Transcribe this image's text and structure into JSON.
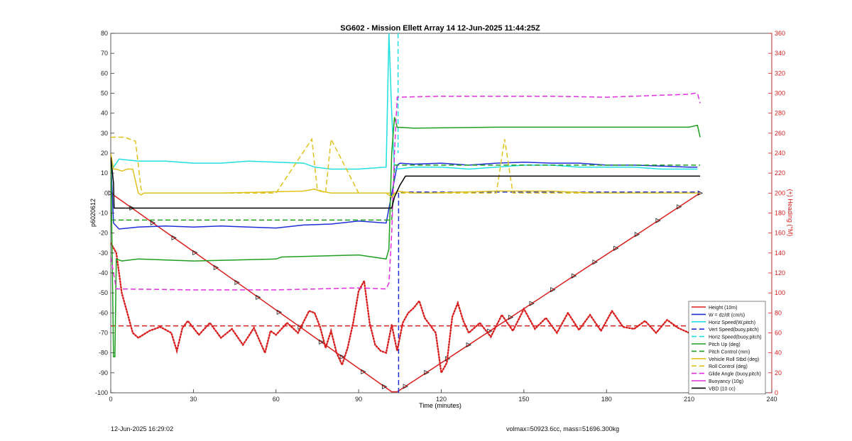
{
  "chart_data": {
    "type": "line",
    "title": "SG602 - Mission Ellett Array 14 12-Jun-2025 11:44:25Z",
    "xlabel": "Time (minutes)",
    "ylabel": "p6020612",
    "ylabel_right": "(+) Heading (°M)",
    "xlim": [
      0,
      240
    ],
    "ylim": [
      -100,
      80
    ],
    "ylim_right": [
      0,
      360
    ],
    "x_ticks": [
      0,
      30,
      60,
      90,
      120,
      150,
      180,
      210,
      240
    ],
    "y_ticks": [
      -100,
      -90,
      -80,
      -70,
      -60,
      -50,
      -40,
      -30,
      -20,
      -10,
      0,
      10,
      20,
      30,
      40,
      50,
      60,
      70,
      80
    ],
    "y_ticks_right": [
      0,
      20,
      40,
      60,
      80,
      100,
      120,
      140,
      160,
      180,
      200,
      220,
      240,
      260,
      280,
      300,
      320,
      340,
      360
    ],
    "grid": false,
    "legend_position": "bottom-right",
    "series": [
      {
        "name": "Height (10m)",
        "color": "#d81e1e",
        "style": "solid",
        "marker": "triangle",
        "x": [
          0,
          102,
          104,
          214
        ],
        "y": [
          0,
          -99.5,
          -99.5,
          0
        ]
      },
      {
        "name": "W = dz/dt (cm/s)",
        "color": "#1f2fd6",
        "style": "solid",
        "x": [
          0,
          1,
          3,
          10,
          20,
          30,
          40,
          50,
          60,
          70,
          80,
          90,
          100,
          104,
          105,
          110,
          120,
          130,
          140,
          150,
          160,
          170,
          180,
          190,
          200,
          210,
          213
        ],
        "y": [
          17,
          -15,
          -18,
          -17,
          -16.5,
          -17,
          -16.5,
          -17,
          -17.5,
          -16,
          -15.5,
          -14,
          -15,
          14,
          15,
          14.5,
          15,
          14,
          15,
          15.5,
          15,
          15,
          14,
          14,
          13.5,
          13,
          13
        ]
      },
      {
        "name": "Horiz Speed(W,pitch)",
        "color": "#1fe0e0",
        "style": "solid",
        "x": [
          0,
          1,
          3,
          10,
          20,
          30,
          40,
          50,
          60,
          70,
          74,
          80,
          90,
          100,
          101,
          102,
          103,
          104,
          110,
          120,
          130,
          140,
          150,
          160,
          170,
          180,
          190,
          200,
          210,
          213
        ],
        "y": [
          15,
          13,
          17,
          16,
          16,
          15,
          15,
          16,
          15.5,
          15,
          13,
          12,
          12,
          13,
          80,
          40,
          12,
          12,
          13,
          13,
          12,
          13,
          14,
          14,
          13,
          13,
          13,
          12,
          12,
          12
        ]
      },
      {
        "name": "Vert Speed(buoy,pitch)",
        "color": "#1f2fd6",
        "style": "dashed",
        "x": [
          104.5,
          104.5,
          104.6,
          214
        ],
        "y": [
          -100,
          0,
          0.5,
          0.5
        ]
      },
      {
        "name": "Horiz Speed(buoy,pitch)",
        "color": "#1fe0e0",
        "style": "dashed",
        "x": [
          104.3,
          104.3
        ],
        "y": [
          80,
          20
        ]
      },
      {
        "name": "Heading",
        "color": "#d81e1e",
        "style": "dotted",
        "axis": "right",
        "x": [
          0,
          2,
          4,
          6,
          8,
          10,
          14,
          18,
          22,
          24,
          26,
          28,
          32,
          36,
          40,
          44,
          48,
          52,
          56,
          58,
          60,
          64,
          68,
          72,
          74,
          76,
          78,
          80,
          82,
          84,
          86,
          88,
          90,
          92,
          94,
          96,
          98,
          100,
          102,
          104,
          106,
          108,
          110,
          112,
          114,
          118,
          120,
          122,
          124,
          126,
          128,
          130,
          134,
          138,
          142,
          146,
          150,
          154,
          158,
          162,
          166,
          170,
          174,
          178,
          182,
          186,
          190,
          194,
          198,
          202,
          206,
          210,
          212,
          214
        ],
        "y": [
          150,
          140,
          100,
          80,
          60,
          55,
          62,
          66,
          60,
          42,
          65,
          72,
          58,
          70,
          55,
          64,
          48,
          65,
          40,
          62,
          58,
          70,
          60,
          82,
          80,
          66,
          45,
          62,
          40,
          28,
          45,
          70,
          102,
          112,
          70,
          48,
          42,
          40,
          68,
          42,
          70,
          80,
          85,
          92,
          75,
          60,
          20,
          30,
          76,
          90,
          72,
          60,
          70,
          56,
          78,
          62,
          84,
          64,
          75,
          60,
          80,
          63,
          78,
          62,
          82,
          66,
          64,
          72,
          60,
          73,
          65,
          60,
          60,
          70
        ]
      },
      {
        "name": "Heading target",
        "color": "#d81e1e",
        "style": "dashed",
        "axis": "right",
        "x": [
          0,
          214
        ],
        "y": [
          67,
          67
        ]
      },
      {
        "name": "Pitch Up (deg)",
        "color": "#1f9e1f",
        "style": "solid",
        "x": [
          0,
          1,
          1.5,
          2,
          4,
          10,
          30,
          60,
          62,
          90,
          100,
          101,
          102,
          103,
          104,
          110,
          140,
          180,
          210,
          213,
          214
        ],
        "y": [
          20,
          -82,
          -82,
          -33,
          -34,
          -33,
          -34,
          -33,
          -32,
          -31,
          -33,
          -28,
          20,
          38,
          33,
          32.5,
          33,
          33,
          33,
          34,
          28
        ]
      },
      {
        "name": "Pitch Control (mm)",
        "color": "#1f9e1f",
        "style": "dashed",
        "x": [
          0,
          102,
          103,
          214
        ],
        "y": [
          -13.5,
          -13.5,
          14,
          14
        ]
      },
      {
        "name": "Vehicle Roll Stbd (deg)",
        "color": "#e0c21e",
        "style": "solid",
        "x": [
          0,
          1,
          2,
          4,
          6,
          8,
          10,
          11,
          12,
          40,
          70,
          74,
          76,
          80,
          100,
          102,
          104,
          110,
          114,
          116,
          140,
          160,
          175,
          180,
          190,
          200,
          210,
          213
        ],
        "y": [
          20,
          12,
          12,
          11,
          12,
          12,
          0,
          -1,
          0,
          0,
          1,
          2,
          1,
          0,
          0,
          -2,
          1,
          0,
          0,
          0,
          1,
          1,
          0,
          0,
          0,
          0,
          0,
          0
        ]
      },
      {
        "name": "Roll Control (deg)",
        "color": "#e0c21e",
        "style": "dashed",
        "x": [
          0,
          1,
          3,
          5,
          9,
          11,
          12,
          30,
          50,
          60,
          73,
          75,
          78,
          80,
          90,
          100,
          103,
          105,
          110,
          120,
          130,
          140,
          143,
          146,
          150,
          160,
          180,
          200,
          210,
          214
        ],
        "y": [
          28,
          28,
          28,
          28,
          26,
          2,
          0,
          0,
          0,
          0,
          27,
          2,
          0,
          27,
          0,
          0,
          0,
          0,
          0,
          0,
          0,
          0,
          27,
          0,
          0,
          0,
          0,
          0,
          0,
          0
        ]
      },
      {
        "name": "Glide Angle (buoy,pitch)",
        "color": "#e02ee0",
        "style": "dashed",
        "x": [
          0,
          2,
          3,
          30,
          60,
          90,
          100,
          101,
          102,
          103,
          104,
          120,
          140,
          160,
          180,
          200,
          210,
          212,
          213,
          214
        ],
        "y": [
          -32,
          -48,
          -48,
          -48.5,
          -48.5,
          -47.5,
          -48,
          -45,
          -20,
          20,
          48,
          48.5,
          48.5,
          48.5,
          48,
          49,
          49.5,
          50,
          50,
          45
        ]
      },
      {
        "name": "Buoyancy (10g)",
        "color": "#e02ee0",
        "style": "solid",
        "x": [],
        "y": []
      },
      {
        "name": "VBD (10 cc)",
        "color": "#000000",
        "style": "solid",
        "x": [
          0,
          1,
          1.2,
          102,
          103,
          105,
          107,
          214
        ],
        "y": [
          18,
          5,
          -7.5,
          -7.5,
          -2,
          4,
          8.5,
          8.5
        ]
      }
    ]
  },
  "legend": [
    {
      "label": "Height (10m)",
      "color": "#d81e1e",
      "style": "solid",
      "marker": "triangle"
    },
    {
      "label": "W = dz/dt (cm/s)",
      "color": "#1f2fd6",
      "style": "solid",
      "marker": "x"
    },
    {
      "label": "Horiz Speed(W,pitch)",
      "color": "#1fe0e0",
      "style": "solid",
      "marker": "dot"
    },
    {
      "label": "Vert Speed(buoy,pitch)",
      "color": "#1f2fd6",
      "style": "dashed",
      "marker": "dot"
    },
    {
      "label": "Horiz Speed(buoy,pitch)",
      "color": "#1fe0e0",
      "style": "dashed",
      "marker": "dot"
    },
    {
      "label": "Pitch Up (deg)",
      "color": "#1f9e1f",
      "style": "solid",
      "marker": "triangle"
    },
    {
      "label": "Pitch Control (mm)",
      "color": "#1f9e1f",
      "style": "dashed",
      "marker": "none"
    },
    {
      "label": "Vehicle Roll Stbd (deg)",
      "color": "#e0c21e",
      "style": "solid",
      "marker": "dot"
    },
    {
      "label": "Roll Control (deg)",
      "color": "#e0c21e",
      "style": "dashed",
      "marker": "dot"
    },
    {
      "label": "Glide Angle (buoy,pitch)",
      "color": "#e02ee0",
      "style": "dashed",
      "marker": "none"
    },
    {
      "label": "Buoyancy (10g)",
      "color": "#e02ee0",
      "style": "solid",
      "marker": "none"
    },
    {
      "label": "VBD (10 cc)",
      "color": "#000000",
      "style": "solid",
      "marker": "none"
    }
  ],
  "footer": {
    "left": "12-Jun-2025 16:29:02",
    "right": "volmax=50923.6cc, mass=51696.300kg"
  }
}
